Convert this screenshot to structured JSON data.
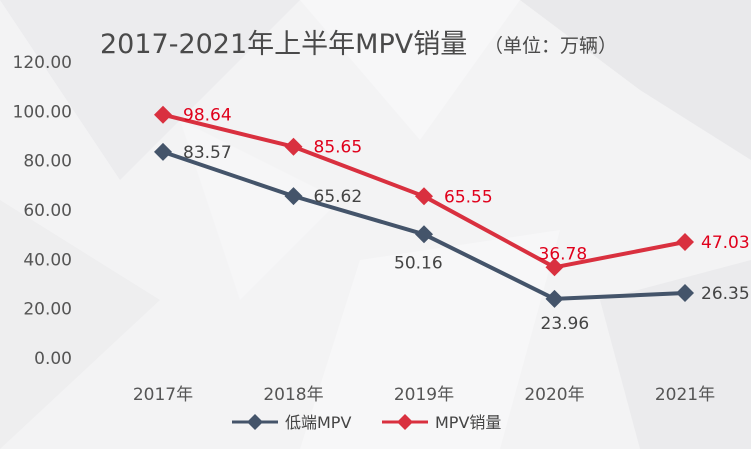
{
  "chart_data": {
    "type": "line",
    "title": "2017-2021年上半年MPV销量",
    "subtitle": "（单位：万辆）",
    "categories": [
      "2017年",
      "2018年",
      "2019年",
      "2020年",
      "2021年"
    ],
    "yticks": [
      "0.00",
      "20.00",
      "40.00",
      "60.00",
      "80.00",
      "100.00",
      "120.00"
    ],
    "ylim": [
      0,
      120
    ],
    "grid": false,
    "legend_position": "bottom",
    "series": [
      {
        "name": "低端MPV",
        "color": "#44546a",
        "marker": "diamond",
        "values": [
          83.57,
          65.62,
          50.16,
          23.96,
          26.35
        ],
        "labels": [
          "83.57",
          "65.62",
          "50.16",
          "23.96",
          "26.35"
        ]
      },
      {
        "name": "MPV销量",
        "color": "#d9303f",
        "marker": "diamond",
        "values": [
          98.64,
          85.65,
          65.55,
          36.78,
          47.03
        ],
        "labels": [
          "98.64",
          "85.65",
          "65.55",
          "36.78",
          "47.03"
        ]
      }
    ]
  }
}
